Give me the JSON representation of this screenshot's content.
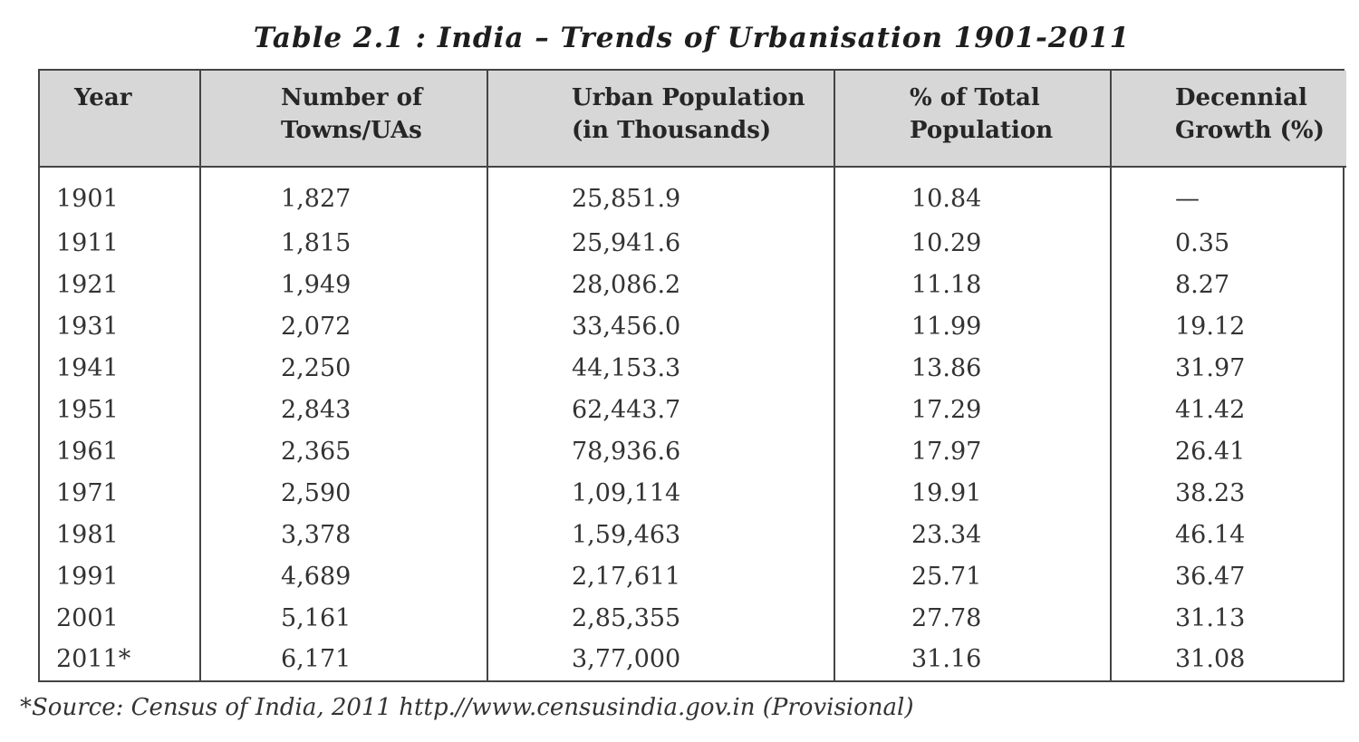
{
  "title": "Table 2.1 : India – Trends of Urbanisation 1901-2011",
  "table": {
    "headers": [
      "Year",
      "Number of\nTowns/UAs",
      "Urban Population\n(in Thousands)",
      "% of Total\nPopulation",
      "Decennial\nGrowth (%)"
    ],
    "rows": [
      [
        "1901",
        "1,827",
        "25,851.9",
        "10.84",
        "—"
      ],
      [
        "1911",
        "1,815",
        "25,941.6",
        "10.29",
        "0.35"
      ],
      [
        "1921",
        "1,949",
        "28,086.2",
        "11.18",
        "8.27"
      ],
      [
        "1931",
        "2,072",
        "33,456.0",
        "11.99",
        "19.12"
      ],
      [
        "1941",
        "2,250",
        "44,153.3",
        "13.86",
        "31.97"
      ],
      [
        "1951",
        "2,843",
        "62,443.7",
        "17.29",
        "41.42"
      ],
      [
        "1961",
        "2,365",
        "78,936.6",
        "17.97",
        "26.41"
      ],
      [
        "1971",
        "2,590",
        "1,09,114",
        "19.91",
        "38.23"
      ],
      [
        "1981",
        "3,378",
        "1,59,463",
        "23.34",
        "46.14"
      ],
      [
        "1991",
        "4,689",
        "2,17,611",
        "25.71",
        "36.47"
      ],
      [
        "2001",
        "5,161",
        "2,85,355",
        "27.78",
        "31.13"
      ],
      [
        "2011*",
        "6,171",
        "3,77,000",
        "31.16",
        "31.08"
      ]
    ]
  },
  "footnote": "*Source: Census of India, 2011 http.//www.censusindia.gov.in (Provisional)"
}
